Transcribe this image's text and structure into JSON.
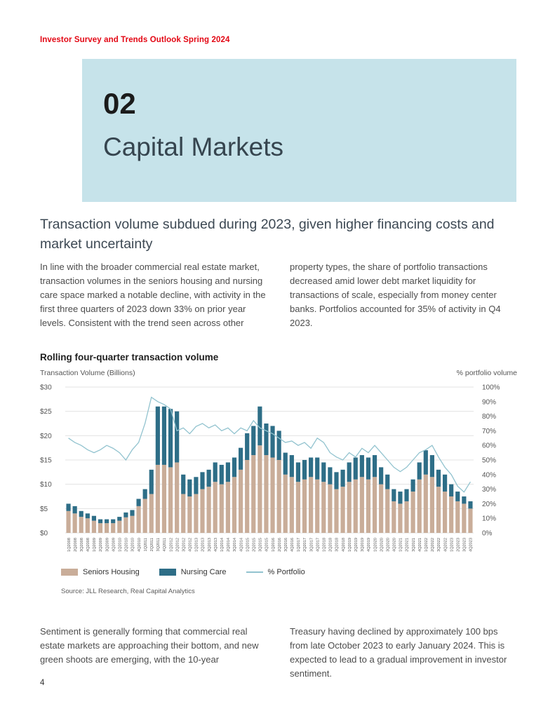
{
  "page": {
    "header": "Investor Survey and Trends Outlook Spring 2024",
    "page_number": "4"
  },
  "section": {
    "number": "02",
    "title": "Capital Markets"
  },
  "article": {
    "heading": "Transaction volume subdued during 2023, given higher financing costs and market uncertainty",
    "col1": "In line with the broader commercial real estate market, transaction volumes in the seniors housing and nursing care space marked a notable decline, with activity in the first three quarters of 2023 down 33% on prior year levels. Consistent with the trend seen across other",
    "col2": "property types, the share of portfolio transactions decreased amid lower debt market liquidity for transactions of scale, especially from money center banks. Portfolios accounted for 35% of activity in Q4 2023.",
    "bottom_col1": "Sentiment is generally forming that commercial real estate markets are approaching their bottom, and new green shoots are emerging, with the 10-year",
    "bottom_col2": "Treasury having declined by approximately 100 bps from late October 2023 to early January 2024. This is expected to lead to a gradual improvement in investor sentiment."
  },
  "chart": {
    "title": "Rolling four-quarter transaction volume",
    "left_axis_label": "Transaction Volume (Billions)",
    "right_axis_label": "% portfolio volume",
    "source": "Source: JLL Research, Real Capital Analytics"
  },
  "chart_data": {
    "type": "bar",
    "subtype": "stacked-bars-with-line",
    "title": "Rolling four-quarter transaction volume",
    "ylabel_left": "Transaction Volume (Billions)",
    "ylabel_right": "% portfolio volume",
    "ylim_left": [
      0,
      30
    ],
    "ylim_right": [
      0,
      100
    ],
    "y_left_ticks": [
      0,
      5,
      10,
      15,
      20,
      25,
      30
    ],
    "y_right_ticks": [
      0,
      10,
      20,
      30,
      40,
      50,
      60,
      70,
      80,
      90,
      100
    ],
    "grid": true,
    "legend_position": "bottom",
    "colors": {
      "seniors_housing": "#c9ad99",
      "nursing_care": "#2e6e87",
      "line": "#92c3cf"
    },
    "categories": [
      "1Q2008",
      "2Q2008",
      "3Q2008",
      "4Q2008",
      "1Q2009",
      "2Q2009",
      "3Q2009",
      "4Q2009",
      "1Q2010",
      "2Q2010",
      "3Q2010",
      "4Q2010",
      "1Q2011",
      "2Q2011",
      "3Q2011",
      "4Q2011",
      "1Q2012",
      "2Q2012",
      "3Q2012",
      "4Q2012",
      "1Q2013",
      "2Q2013",
      "3Q2013",
      "4Q2013",
      "1Q2014",
      "2Q2014",
      "3Q2014",
      "4Q2014",
      "1Q2015",
      "2Q2015",
      "3Q2015",
      "4Q2015",
      "1Q2016",
      "2Q2016",
      "3Q2016",
      "4Q2016",
      "1Q2017",
      "2Q2017",
      "3Q2017",
      "4Q2017",
      "1Q2018",
      "2Q2018",
      "3Q2018",
      "4Q2018",
      "1Q2019",
      "2Q2019",
      "3Q2019",
      "4Q2019",
      "1Q2020",
      "2Q2020",
      "3Q2020",
      "4Q2020",
      "1Q2021",
      "2Q2021",
      "3Q2021",
      "4Q2021",
      "1Q2022",
      "2Q2022",
      "3Q2022",
      "4Q2022",
      "1Q2023",
      "2Q2023",
      "3Q2023",
      "4Q2023"
    ],
    "series": [
      {
        "name": "Seniors Housing",
        "values": [
          4.5,
          4.0,
          3.3,
          3.0,
          2.5,
          2.0,
          2.0,
          2.0,
          2.5,
          3.2,
          3.5,
          5.5,
          7.0,
          8.0,
          14.0,
          14.0,
          13.5,
          14.5,
          8.0,
          7.5,
          8.0,
          9.0,
          9.5,
          10.5,
          10.0,
          10.5,
          11.5,
          13.0,
          15.0,
          16.0,
          18.0,
          16.0,
          15.5,
          15.0,
          12.0,
          11.5,
          10.5,
          11.0,
          11.5,
          11.0,
          10.5,
          10.0,
          9.0,
          9.5,
          10.5,
          11.0,
          11.5,
          11.0,
          11.5,
          10.0,
          9.0,
          6.5,
          6.0,
          6.5,
          8.5,
          11.0,
          12.0,
          11.5,
          9.5,
          8.5,
          7.5,
          6.5,
          6.0,
          5.0
        ]
      },
      {
        "name": "Nursing Care",
        "values": [
          1.5,
          1.5,
          1.2,
          1.0,
          1.0,
          0.8,
          0.8,
          0.8,
          0.8,
          1.0,
          1.2,
          1.5,
          2.0,
          5.0,
          12.0,
          12.0,
          12.0,
          10.5,
          4.0,
          3.5,
          3.5,
          3.5,
          3.5,
          4.0,
          4.0,
          4.0,
          4.0,
          4.5,
          5.5,
          6.0,
          8.0,
          6.5,
          6.5,
          6.0,
          4.5,
          4.5,
          4.0,
          4.0,
          4.0,
          4.5,
          4.0,
          3.5,
          3.5,
          3.5,
          4.0,
          4.5,
          4.5,
          4.5,
          4.5,
          3.5,
          3.0,
          2.5,
          2.5,
          2.5,
          2.5,
          3.5,
          5.0,
          4.5,
          3.5,
          3.5,
          2.5,
          2.0,
          1.5,
          1.5
        ]
      }
    ],
    "line": {
      "name": "% Portfolio",
      "axis": "right",
      "values": [
        65,
        62,
        60,
        57,
        55,
        57,
        60,
        58,
        55,
        50,
        57,
        62,
        75,
        93,
        90,
        88,
        85,
        70,
        72,
        68,
        73,
        75,
        72,
        74,
        70,
        72,
        68,
        72,
        70,
        77,
        72,
        70,
        68,
        65,
        62,
        63,
        60,
        62,
        58,
        65,
        62,
        55,
        52,
        50,
        55,
        52,
        58,
        55,
        60,
        55,
        50,
        45,
        42,
        45,
        50,
        55,
        57,
        60,
        52,
        45,
        40,
        32,
        28,
        35
      ]
    }
  }
}
